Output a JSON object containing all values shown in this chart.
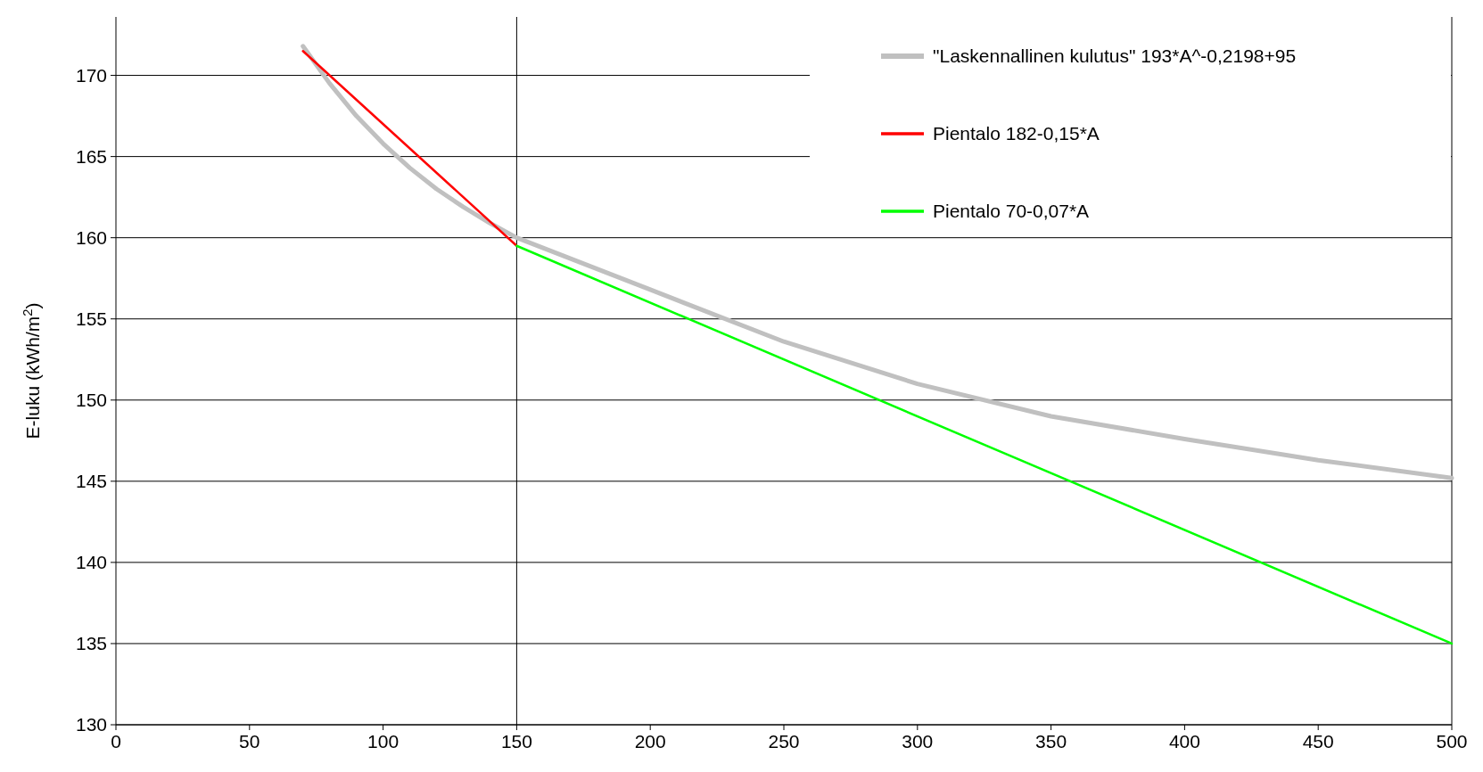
{
  "chart_data": {
    "type": "line",
    "ylabel": "E-luku (kWh/m$^{2}$)",
    "xlim": [
      0,
      500
    ],
    "xticks": [
      0,
      50,
      100,
      150,
      200,
      250,
      300,
      350,
      400,
      450,
      500
    ],
    "ylim": [
      130,
      173.6
    ],
    "yticks": [
      130,
      135,
      140,
      145,
      150,
      155,
      160,
      165,
      170
    ],
    "grid": "y",
    "legend": "top right",
    "marker": "none",
    "line_style": "solid",
    "ref_lines": [
      {
        "axis": "x",
        "value": 150,
        "color": "#000000"
      }
    ],
    "series": [
      {
        "name": "\"Laskennallinen kulutus\" 193*A^-0,2198+95",
        "color": "#c0c0c0",
        "x": [
          70,
          80,
          90,
          100,
          110,
          120,
          130,
          140,
          150,
          200,
          250,
          300,
          350,
          400,
          450,
          500
        ],
        "values": [
          171.8,
          169.5,
          167.5,
          165.8,
          164.3,
          163,
          161.9,
          160.9,
          160,
          156.8,
          153.6,
          151,
          149,
          147.6,
          146.3,
          145.2
        ]
      },
      {
        "name": "Pientalo 182-0,15*A",
        "color": "#ff0000",
        "x": [
          70,
          150
        ],
        "values": [
          171.5,
          159.5
        ]
      },
      {
        "name": "Pientalo 70-0,07*A",
        "color": "#00ff00",
        "x": [
          150,
          500
        ],
        "values": [
          159.5,
          135
        ]
      }
    ]
  }
}
